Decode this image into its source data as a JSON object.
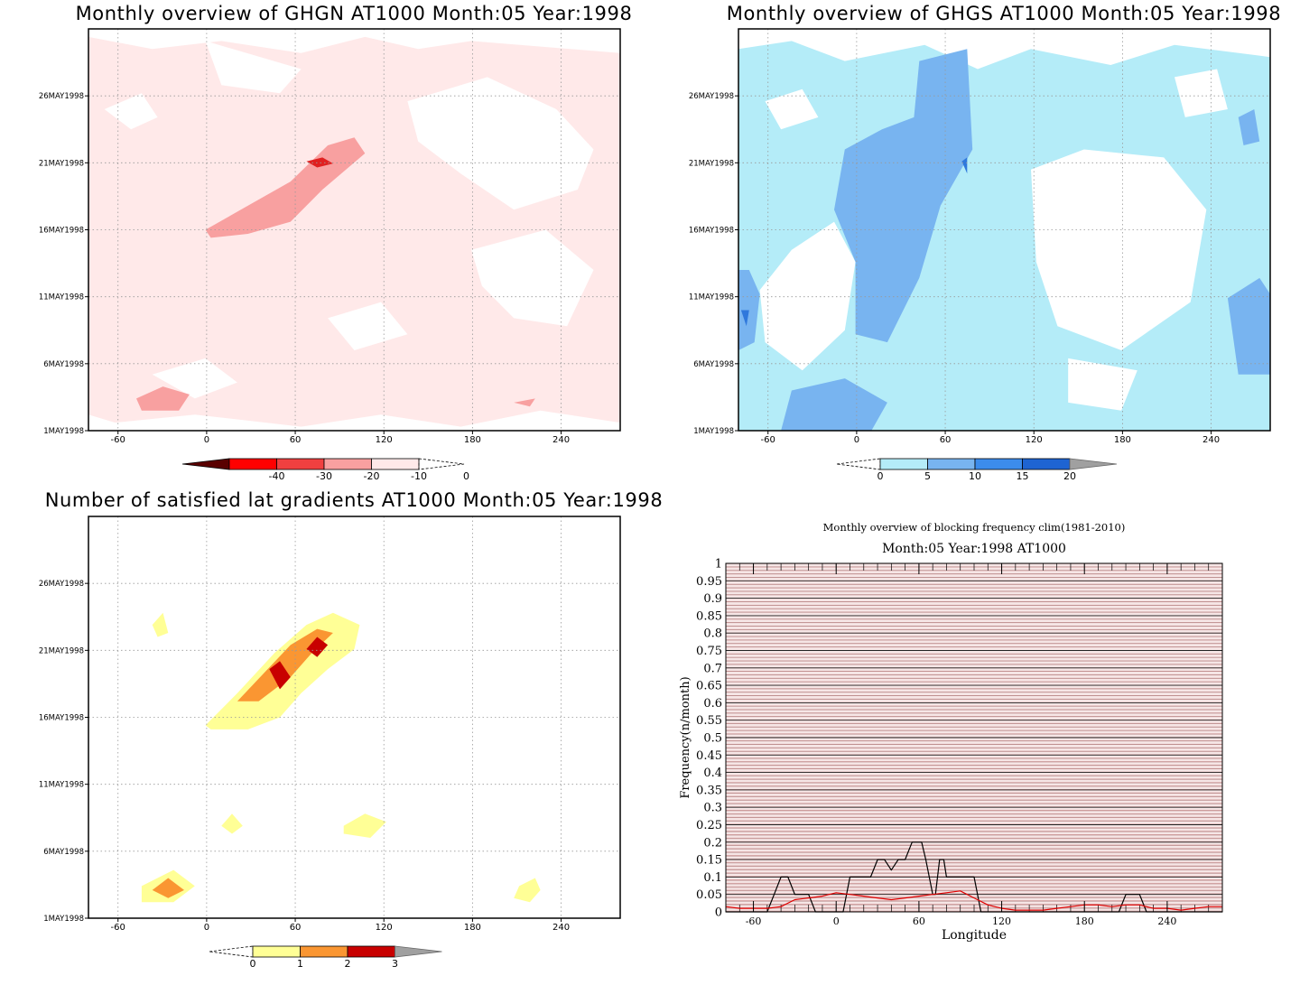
{
  "chart_data": [
    {
      "type": "heatmap",
      "title": "Monthly overview of GHGN AT1000 Month:05 Year:1998",
      "x_ticks": [
        "-60",
        "0",
        "60",
        "120",
        "180",
        "240"
      ],
      "x_tick_values": [
        -60,
        0,
        60,
        120,
        180,
        240
      ],
      "xlim": [
        -80,
        280
      ],
      "y_ticks": [
        "1MAY1998",
        "6MAY1998",
        "11MAY1998",
        "16MAY1998",
        "21MAY1998",
        "26MAY1998"
      ],
      "y_tick_values": [
        1,
        6,
        11,
        16,
        21,
        26
      ],
      "ylim": [
        1,
        31
      ],
      "grid": true,
      "colorbar": {
        "ticks": [
          "-40",
          "-30",
          "-20",
          "-10",
          "0"
        ],
        "colors": [
          "#5a0000",
          "#ff0000",
          "#f04040",
          "#f8a0a0",
          "#ffe9e9"
        ]
      },
      "colors": {
        "weak": "#ffe9e9",
        "mid": "#f8a0a0",
        "strong": "#e02020"
      }
    },
    {
      "type": "heatmap",
      "title": "Monthly overview of GHGS AT1000 Month:05 Year:1998",
      "x_ticks": [
        "-60",
        "0",
        "60",
        "120",
        "180",
        "240"
      ],
      "x_tick_values": [
        -60,
        0,
        60,
        120,
        180,
        240
      ],
      "xlim": [
        -80,
        280
      ],
      "y_ticks": [
        "1MAY1998",
        "6MAY1998",
        "11MAY1998",
        "16MAY1998",
        "21MAY1998",
        "26MAY1998"
      ],
      "y_tick_values": [
        1,
        6,
        11,
        16,
        21,
        26
      ],
      "ylim": [
        1,
        31
      ],
      "grid": true,
      "colorbar": {
        "ticks": [
          "0",
          "5",
          "10",
          "15",
          "20"
        ],
        "colors": [
          "#b4ecf8",
          "#78b4f0",
          "#3c8cec",
          "#1e64d2",
          "#a0a0a0"
        ]
      },
      "colors": {
        "weak": "#b4ecf8",
        "mid": "#78b4f0",
        "strong": "#2f78dc"
      }
    },
    {
      "type": "heatmap",
      "title": "Number of satisfied lat gradients AT1000 Month:05 Year:1998",
      "x_ticks": [
        "-60",
        "0",
        "60",
        "120",
        "180",
        "240"
      ],
      "x_tick_values": [
        -60,
        0,
        60,
        120,
        180,
        240
      ],
      "xlim": [
        -80,
        280
      ],
      "y_ticks": [
        "1MAY1998",
        "6MAY1998",
        "11MAY1998",
        "16MAY1998",
        "21MAY1998",
        "26MAY1998"
      ],
      "y_tick_values": [
        1,
        6,
        11,
        16,
        21,
        26
      ],
      "ylim": [
        1,
        31
      ],
      "grid": true,
      "colorbar": {
        "ticks": [
          "0",
          "1",
          "2",
          "3"
        ],
        "colors": [
          "#ffff96",
          "#fa9632",
          "#c80000",
          "#a0a0a0"
        ]
      },
      "colors": {
        "one": "#ffff96",
        "two": "#fa9632",
        "three": "#c80000"
      }
    },
    {
      "type": "line",
      "title": "Monthly overview of blocking frequency clim(1981-2010)",
      "subtitle": "Month:05 Year:1998  AT1000",
      "xlabel": "Longitude",
      "ylabel": "Frequency(n/month)",
      "xlim": [
        -80,
        280
      ],
      "ylim": [
        0,
        1
      ],
      "x_ticks": [
        "-60",
        "0",
        "60",
        "120",
        "180",
        "240"
      ],
      "x_tick_values": [
        -60,
        0,
        60,
        120,
        180,
        240
      ],
      "y_ticks": [
        "0",
        "0.05",
        "0.1",
        "0.15",
        "0.2",
        "0.25",
        "0.3",
        "0.35",
        "0.4",
        "0.45",
        "0.5",
        "0.55",
        "0.6",
        "0.65",
        "0.7",
        "0.75",
        "0.8",
        "0.85",
        "0.9",
        "0.95",
        "1"
      ],
      "grid": true,
      "colors": {
        "black_series": "#000000",
        "red_series": "#e00000",
        "background": "#f0dcdc"
      },
      "series": [
        {
          "color": "#000000",
          "x": [
            -80,
            -50,
            -45,
            -40,
            -35,
            -30,
            -25,
            -20,
            -15,
            5,
            10,
            25,
            30,
            35,
            40,
            45,
            50,
            55,
            60,
            62,
            65,
            70,
            72,
            75,
            78,
            80,
            85,
            100,
            105,
            205,
            210,
            220,
            225,
            280
          ],
          "y": [
            0,
            0,
            0.05,
            0.1,
            0.1,
            0.05,
            0.05,
            0.05,
            0,
            0,
            0.1,
            0.1,
            0.15,
            0.15,
            0.12,
            0.15,
            0.15,
            0.2,
            0.2,
            0.2,
            0.15,
            0.05,
            0.05,
            0.15,
            0.15,
            0.1,
            0.1,
            0.1,
            0,
            0,
            0.05,
            0.05,
            0,
            0
          ]
        },
        {
          "color": "#e00000",
          "x": [
            -80,
            -70,
            -60,
            -50,
            -40,
            -30,
            -20,
            -10,
            0,
            10,
            20,
            30,
            40,
            50,
            60,
            70,
            80,
            90,
            100,
            110,
            120,
            130,
            140,
            150,
            160,
            170,
            180,
            190,
            200,
            210,
            220,
            230,
            240,
            250,
            260,
            270,
            280
          ],
          "y": [
            0.015,
            0.01,
            0.01,
            0.01,
            0.015,
            0.035,
            0.04,
            0.045,
            0.055,
            0.05,
            0.045,
            0.04,
            0.035,
            0.04,
            0.045,
            0.05,
            0.055,
            0.06,
            0.04,
            0.02,
            0.01,
            0.005,
            0.005,
            0.005,
            0.01,
            0.015,
            0.02,
            0.02,
            0.015,
            0.02,
            0.02,
            0.01,
            0.01,
            0.005,
            0.01,
            0.015,
            0.015
          ]
        }
      ]
    }
  ]
}
